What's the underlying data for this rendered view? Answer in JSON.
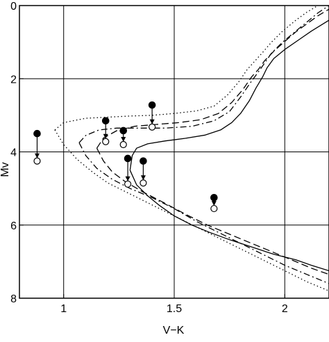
{
  "chart_data": {
    "type": "scatter",
    "title": "",
    "xlabel": "V−K",
    "ylabel": "Mv",
    "xlim": [
      0.8,
      2.2
    ],
    "ylim": [
      8,
      0
    ],
    "y_inverted": true,
    "grid": true,
    "x_ticks": [
      1,
      1.5,
      2
    ],
    "x_tick_labels": [
      "1",
      "1.5",
      "2"
    ],
    "y_ticks": [
      0,
      2,
      4,
      6,
      8
    ],
    "y_tick_labels": [
      "0",
      "2",
      "4",
      "6",
      "8"
    ],
    "curves": [
      {
        "style": "solid",
        "x": [
          1.3,
          1.31,
          1.33,
          1.38,
          1.46,
          1.55,
          1.64,
          1.71,
          1.76,
          1.8,
          1.84,
          1.87,
          1.9,
          1.92,
          1.95,
          2.0,
          2.06,
          2.12,
          2.2
        ],
        "y": [
          4.5,
          4.1,
          3.9,
          3.78,
          3.7,
          3.63,
          3.54,
          3.4,
          3.2,
          2.95,
          2.6,
          2.25,
          1.95,
          1.7,
          1.45,
          1.2,
          0.95,
          0.7,
          0.4
        ]
      },
      {
        "style": "solid",
        "x": [
          1.3,
          1.33,
          1.38,
          1.43,
          1.5,
          1.58,
          1.66,
          1.75,
          1.85,
          1.95,
          2.05,
          2.12,
          2.2
        ],
        "y": [
          4.5,
          4.9,
          5.2,
          5.45,
          5.75,
          6.0,
          6.2,
          6.4,
          6.6,
          6.8,
          6.95,
          7.1,
          7.25
        ]
      },
      {
        "style": "dashed",
        "x": [
          1.15,
          1.18,
          1.24,
          1.32,
          1.42,
          1.52,
          1.62,
          1.7,
          1.76,
          1.81,
          1.85,
          1.88,
          1.91,
          1.95,
          2.0,
          2.05,
          2.1,
          2.15,
          2.2
        ],
        "y": [
          3.9,
          3.62,
          3.42,
          3.3,
          3.25,
          3.2,
          3.12,
          2.95,
          2.65,
          2.3,
          1.95,
          1.75,
          1.5,
          1.25,
          0.98,
          0.72,
          0.5,
          0.28,
          0.1
        ]
      },
      {
        "style": "dashed",
        "x": [
          1.15,
          1.18,
          1.22,
          1.28,
          1.36,
          1.45,
          1.55,
          1.65,
          1.75,
          1.85,
          1.95,
          2.05,
          2.12,
          2.2
        ],
        "y": [
          3.9,
          4.25,
          4.55,
          4.82,
          5.1,
          5.38,
          5.7,
          6.0,
          6.25,
          6.5,
          6.75,
          7.0,
          7.18,
          7.35
        ]
      },
      {
        "style": "dashdot",
        "x": [
          1.07,
          1.1,
          1.16,
          1.24,
          1.34,
          1.46,
          1.58,
          1.68,
          1.75,
          1.8,
          1.84,
          1.87,
          1.9,
          1.94,
          1.99,
          2.05,
          2.1,
          2.15,
          2.2
        ],
        "y": [
          3.75,
          3.55,
          3.4,
          3.35,
          3.35,
          3.35,
          3.3,
          3.15,
          2.9,
          2.5,
          2.15,
          1.9,
          1.65,
          1.3,
          1.0,
          0.7,
          0.45,
          0.2,
          0.0
        ]
      },
      {
        "style": "dashdot",
        "x": [
          1.07,
          1.1,
          1.15,
          1.22,
          1.3,
          1.4,
          1.5,
          1.6,
          1.7,
          1.8,
          1.9,
          2.0,
          2.1,
          2.2
        ],
        "y": [
          3.75,
          4.1,
          4.45,
          4.75,
          5.0,
          5.25,
          5.55,
          5.9,
          6.2,
          6.5,
          6.8,
          7.1,
          7.35,
          7.6
        ]
      },
      {
        "style": "dotted",
        "x": [
          0.96,
          1.0,
          1.1,
          1.2,
          1.3,
          1.4,
          1.5,
          1.6,
          1.68,
          1.74,
          1.79,
          1.83,
          1.87,
          1.9,
          1.94,
          1.99,
          2.05,
          2.1,
          2.15,
          2.2
        ],
        "y": [
          3.4,
          3.2,
          3.08,
          3.05,
          3.02,
          3.0,
          2.95,
          2.88,
          2.75,
          2.45,
          2.1,
          1.75,
          1.48,
          1.28,
          1.0,
          0.7,
          0.4,
          0.18,
          0.0,
          -0.1
        ]
      },
      {
        "style": "dotted",
        "x": [
          0.96,
          1.0,
          1.06,
          1.13,
          1.2,
          1.3,
          1.4,
          1.5,
          1.6,
          1.7,
          1.8,
          1.9,
          2.0,
          2.1,
          2.2
        ],
        "y": [
          3.4,
          3.8,
          4.2,
          4.55,
          4.85,
          5.15,
          5.45,
          5.75,
          6.05,
          6.35,
          6.65,
          6.95,
          7.25,
          7.55,
          7.8
        ]
      }
    ],
    "star_pairs": [
      {
        "x": 0.88,
        "filled_y": 3.5,
        "open_y": 4.25
      },
      {
        "x": 1.19,
        "filled_y": 3.15,
        "open_y": 3.72
      },
      {
        "x": 1.27,
        "filled_y": 3.42,
        "open_y": 3.8
      },
      {
        "x": 1.29,
        "filled_y": 4.18,
        "open_y": 4.88
      },
      {
        "x": 1.36,
        "filled_y": 4.25,
        "open_y": 4.85
      },
      {
        "x": 1.4,
        "filled_y": 2.72,
        "open_y": 3.32
      },
      {
        "x": 1.68,
        "filled_y": 5.25,
        "open_y": 5.55
      }
    ]
  }
}
